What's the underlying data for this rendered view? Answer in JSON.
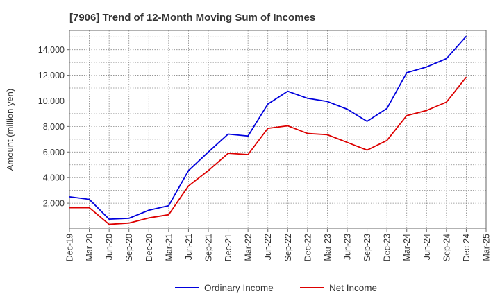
{
  "chart_data": {
    "type": "line",
    "title": "[7906]  Trend of 12-Month Moving Sum of Incomes",
    "xlabel": "",
    "ylabel": "Amount (million yen)",
    "categories": [
      "Dec-19",
      "Mar-20",
      "Jun-20",
      "Sep-20",
      "Dec-20",
      "Mar-21",
      "Jun-21",
      "Sep-21",
      "Dec-21",
      "Mar-22",
      "Jun-22",
      "Sep-22",
      "Dec-22",
      "Mar-23",
      "Jun-23",
      "Sep-23",
      "Dec-23",
      "Mar-24",
      "Jun-24",
      "Sep-24",
      "Dec-24",
      "Mar-25"
    ],
    "ylim": [
      0,
      15500
    ],
    "yticks": [
      2000,
      4000,
      6000,
      8000,
      10000,
      12000,
      14000
    ],
    "ytick_labels": [
      "2,000",
      "4,000",
      "6,000",
      "8,000",
      "10,000",
      "12,000",
      "14,000"
    ],
    "grid": true,
    "legend_position": "bottom-center",
    "series": [
      {
        "name": "Ordinary Income",
        "color": "#0000dd",
        "values": [
          2500,
          2300,
          750,
          820,
          1450,
          1800,
          4550,
          6000,
          7400,
          7250,
          9750,
          10750,
          10200,
          9950,
          9350,
          8400,
          9400,
          12200,
          12650,
          13300,
          15050,
          null
        ]
      },
      {
        "name": "Net Income",
        "color": "#dd0000",
        "values": [
          1650,
          1650,
          350,
          450,
          850,
          1100,
          3350,
          4550,
          5900,
          5800,
          7850,
          8050,
          7450,
          7350,
          6750,
          6150,
          6900,
          8850,
          9250,
          9900,
          11850,
          null
        ]
      }
    ]
  }
}
